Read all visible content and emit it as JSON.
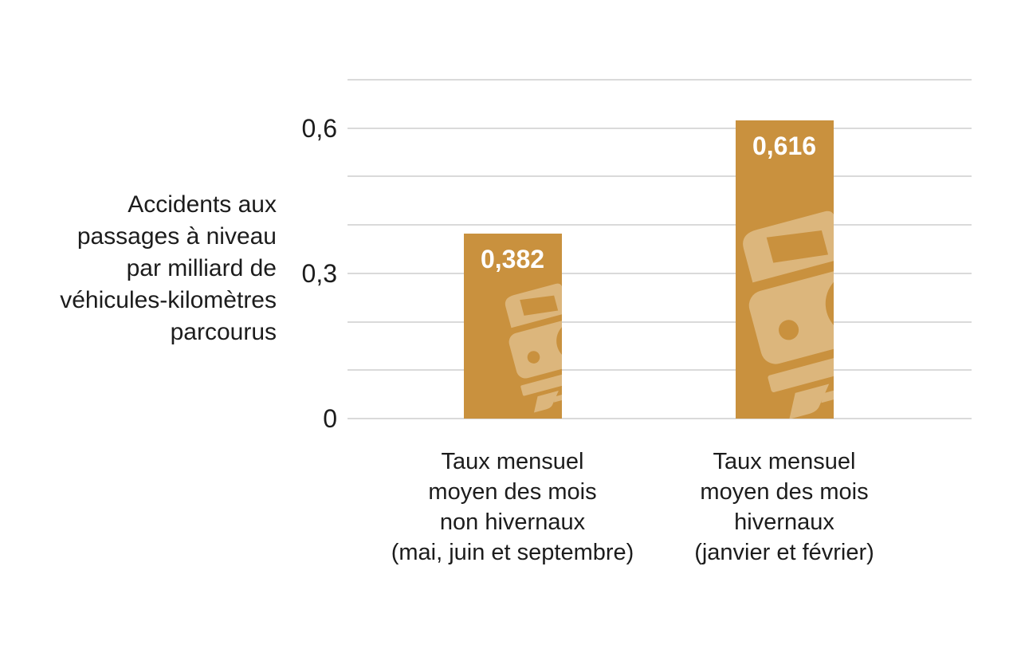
{
  "chart_data": {
    "type": "bar",
    "title": "",
    "ylabel_lines": [
      "Accidents aux",
      "passages à niveau",
      "par milliard de",
      "véhicules-kilomètres",
      "parcourus"
    ],
    "categories": [
      {
        "lines": [
          "Taux mensuel",
          "moyen des mois",
          "non hivernaux",
          "(mai, juin et septembre)"
        ]
      },
      {
        "lines": [
          "Taux mensuel",
          "moyen des mois",
          "hivernaux",
          "(janvier et février)"
        ]
      }
    ],
    "values": [
      0.382,
      0.616
    ],
    "value_labels": [
      "0,382",
      "0,616"
    ],
    "ylim": [
      0,
      0.7
    ],
    "grid_step": 0.1,
    "grid": true,
    "legend": false,
    "yticks": [
      {
        "value": 0.6,
        "label": "0,6"
      },
      {
        "value": 0.3,
        "label": "0,3"
      },
      {
        "value": 0,
        "label": "0"
      }
    ],
    "colors": {
      "bar": "#C9913E",
      "watermark": "#DCB67C",
      "gridline": "#DADADA",
      "text": "#1C1C1C",
      "value_label": "#FFFFFF"
    }
  }
}
